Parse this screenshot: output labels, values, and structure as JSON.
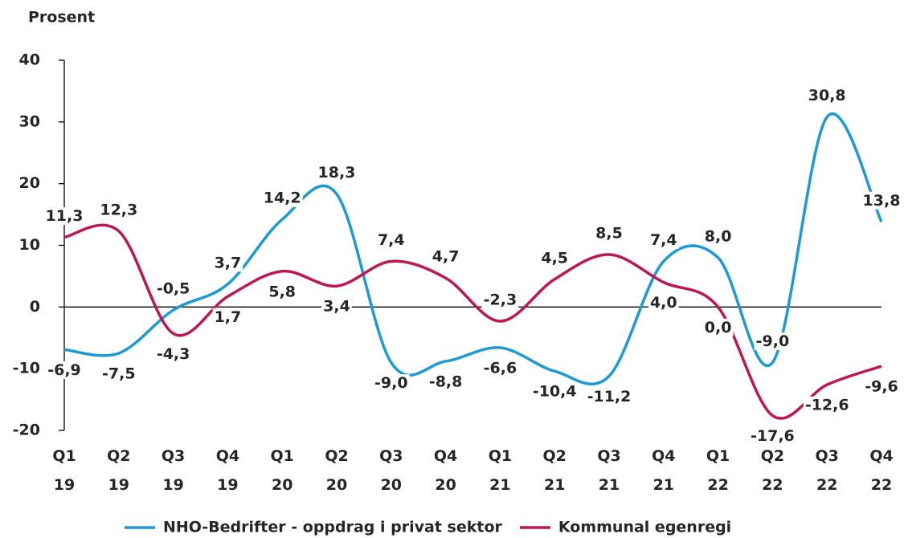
{
  "chart_data": {
    "type": "line",
    "y_label": "Prosent",
    "categories": [
      "Q1 19",
      "Q2 19",
      "Q3 19",
      "Q4 19",
      "Q1 20",
      "Q2 20",
      "Q3 20",
      "Q4 20",
      "Q1 21",
      "Q2 21",
      "Q3 21",
      "Q4 21",
      "Q1 22",
      "Q2 22",
      "Q3 22",
      "Q4 22"
    ],
    "series": [
      {
        "name": "NHO-Bedrifter - oppdrag i privat sektor",
        "color": "#1c9ad6",
        "values": [
          -6.9,
          -7.5,
          -0.5,
          3.7,
          14.2,
          18.3,
          -9.0,
          -8.8,
          -6.6,
          -10.4,
          -11.2,
          7.4,
          8.0,
          -9.0,
          30.8,
          13.8
        ],
        "value_labels": [
          "-6,9",
          "-7,5",
          "-0,5",
          "3,7",
          "14,2",
          "18,3",
          "-9,0",
          "-8,8",
          "-6,6",
          "-10,4",
          "-11,2",
          "7,4",
          "8,0",
          "-9,0",
          "30,8",
          "13,8"
        ]
      },
      {
        "name": "Kommunal egenregi",
        "color": "#c01650",
        "values": [
          11.3,
          12.3,
          -4.3,
          1.7,
          5.8,
          3.4,
          7.4,
          4.7,
          -2.3,
          4.5,
          8.5,
          4.0,
          0.0,
          -17.6,
          -12.6,
          -9.6
        ],
        "value_labels": [
          "11,3",
          "12,3",
          "-4,3",
          "1,7",
          "5,8",
          "3,4",
          "7,4",
          "4,7",
          "-2,3",
          "4,5",
          "8,5",
          "4,0",
          "0,0",
          "-17,6",
          "-12,6",
          "-9,6"
        ]
      }
    ],
    "ylim": [
      -20,
      40
    ],
    "yticks": [
      -20,
      -10,
      0,
      10,
      20,
      30,
      40
    ]
  }
}
